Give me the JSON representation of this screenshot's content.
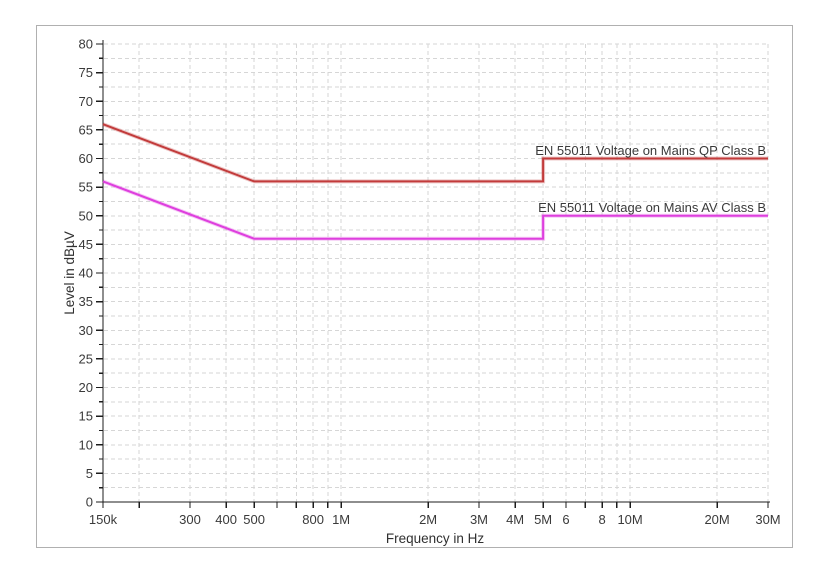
{
  "window": {
    "background": "#ffffff",
    "panel_border_color": "#b0b0b0"
  },
  "chart_data": {
    "type": "line",
    "title": "",
    "xlabel": "Frequency in Hz",
    "ylabel": "Level in dBµV",
    "x_scale": "log",
    "x_range_hz": [
      150000,
      30000000
    ],
    "y_range": [
      0,
      80
    ],
    "y_major_step": 5,
    "y_minor_step": 2.5,
    "grid": {
      "visible": true,
      "style": "dashed",
      "color": "#d6d6d6",
      "h_step_db": 2.5
    },
    "axis_color": "#1c1c1c",
    "x_ticks": [
      {
        "hz": 150000,
        "label": "150k"
      },
      {
        "hz": 200000,
        "label": ""
      },
      {
        "hz": 300000,
        "label": "300"
      },
      {
        "hz": 400000,
        "label": "400"
      },
      {
        "hz": 500000,
        "label": "500"
      },
      {
        "hz": 600000,
        "label": ""
      },
      {
        "hz": 700000,
        "label": ""
      },
      {
        "hz": 800000,
        "label": "800"
      },
      {
        "hz": 900000,
        "label": ""
      },
      {
        "hz": 1000000,
        "label": "1M"
      },
      {
        "hz": 2000000,
        "label": "2M"
      },
      {
        "hz": 3000000,
        "label": "3M"
      },
      {
        "hz": 4000000,
        "label": "4M"
      },
      {
        "hz": 5000000,
        "label": "5M"
      },
      {
        "hz": 6000000,
        "label": "6"
      },
      {
        "hz": 7000000,
        "label": ""
      },
      {
        "hz": 8000000,
        "label": "8"
      },
      {
        "hz": 9000000,
        "label": ""
      },
      {
        "hz": 10000000,
        "label": "10M"
      },
      {
        "hz": 20000000,
        "label": "20M"
      },
      {
        "hz": 30000000,
        "label": "30M"
      }
    ],
    "y_tick_labels": [
      "0",
      "5",
      "10",
      "15",
      "20",
      "25",
      "30",
      "35",
      "40",
      "45",
      "50",
      "55",
      "60",
      "65",
      "70",
      "75",
      "80"
    ],
    "legend_position": "inline-right-above-line",
    "series": [
      {
        "id": "qp",
        "name": "EN 55011 Voltage on Mains QP Class B",
        "color": "#c23b3b",
        "label_color": "#d45f5f",
        "points_hz_dbuv": [
          [
            150000,
            66
          ],
          [
            500000,
            56
          ],
          [
            5000000,
            56
          ],
          [
            5000000,
            60
          ],
          [
            30000000,
            60
          ]
        ]
      },
      {
        "id": "av",
        "name": "EN 55011 Voltage on Mains AV Class B",
        "color": "#de3fde",
        "label_color": "#de74d2",
        "points_hz_dbuv": [
          [
            150000,
            56
          ],
          [
            500000,
            46
          ],
          [
            5000000,
            46
          ],
          [
            5000000,
            50
          ],
          [
            30000000,
            50
          ]
        ]
      }
    ]
  }
}
